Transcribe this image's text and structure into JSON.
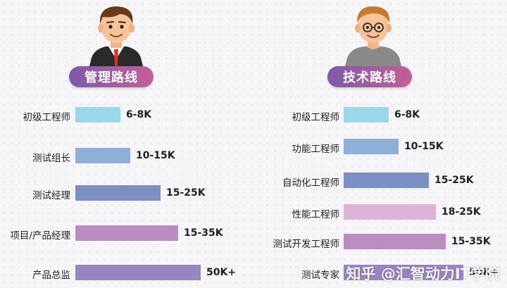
{
  "colors": {
    "pill_start": "#7d5aa9",
    "pill_end": "#c45f98",
    "bar_colors": [
      "#9bd8ec",
      "#8eb0d8",
      "#7b8fc5",
      "#ddb4d8",
      "#b98dc1",
      "#9886c0"
    ]
  },
  "left": {
    "title": "管理路线"
  },
  "right": {
    "title": "技术路线"
  },
  "watermark": "知乎 @汇智动力IT学院",
  "chart_data": [
    {
      "type": "bar",
      "orientation": "horizontal",
      "title": "管理路线",
      "categories": [
        "初级工程师",
        "测试组长",
        "测试经理",
        "项目/产品经理",
        "产品总监"
      ],
      "values": [
        8,
        15,
        25,
        35,
        50
      ],
      "labels": [
        "6-8K",
        "10-15K",
        "15-25K",
        "15-35K",
        "50K+"
      ],
      "bar_colors": [
        "#9bd8ec",
        "#8eb0d8",
        "#7b8fc5",
        "#b98dc1",
        "#9886c0"
      ],
      "xlim": [
        0,
        60
      ]
    },
    {
      "type": "bar",
      "orientation": "horizontal",
      "title": "技术路线",
      "categories": [
        "初级工程师",
        "功能工程师",
        "自动化工程师",
        "性能工程师",
        "测试开发工程师",
        "测试专家"
      ],
      "values": [
        8,
        15,
        25,
        25,
        35,
        50
      ],
      "labels": [
        "6-8K",
        "10-15K",
        "15-25K",
        "18-25K",
        "15-35K",
        "50K+"
      ],
      "bar_colors": [
        "#9bd8ec",
        "#8eb0d8",
        "#7b8fc5",
        "#ddb4d8",
        "#b98dc1",
        "#9886c0"
      ],
      "xlim": [
        0,
        60
      ]
    }
  ]
}
